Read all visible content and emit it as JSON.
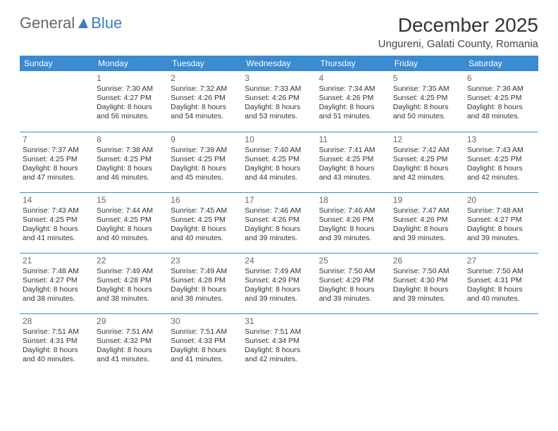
{
  "brand": {
    "part1": "General",
    "part2": "Blue"
  },
  "title": "December 2025",
  "location": "Ungureni, Galati County, Romania",
  "colors": {
    "header_bg": "#3a8bd0",
    "header_fg": "#ffffff",
    "border": "#3a8bd0",
    "brand_gray": "#666666",
    "brand_blue": "#3a7ec2"
  },
  "day_headers": [
    "Sunday",
    "Monday",
    "Tuesday",
    "Wednesday",
    "Thursday",
    "Friday",
    "Saturday"
  ],
  "weeks": [
    [
      null,
      {
        "n": "1",
        "sr": "7:30 AM",
        "ss": "4:27 PM",
        "dl1": "Daylight: 8 hours",
        "dl2": "and 56 minutes."
      },
      {
        "n": "2",
        "sr": "7:32 AM",
        "ss": "4:26 PM",
        "dl1": "Daylight: 8 hours",
        "dl2": "and 54 minutes."
      },
      {
        "n": "3",
        "sr": "7:33 AM",
        "ss": "4:26 PM",
        "dl1": "Daylight: 8 hours",
        "dl2": "and 53 minutes."
      },
      {
        "n": "4",
        "sr": "7:34 AM",
        "ss": "4:26 PM",
        "dl1": "Daylight: 8 hours",
        "dl2": "and 51 minutes."
      },
      {
        "n": "5",
        "sr": "7:35 AM",
        "ss": "4:25 PM",
        "dl1": "Daylight: 8 hours",
        "dl2": "and 50 minutes."
      },
      {
        "n": "6",
        "sr": "7:36 AM",
        "ss": "4:25 PM",
        "dl1": "Daylight: 8 hours",
        "dl2": "and 48 minutes."
      }
    ],
    [
      {
        "n": "7",
        "sr": "7:37 AM",
        "ss": "4:25 PM",
        "dl1": "Daylight: 8 hours",
        "dl2": "and 47 minutes."
      },
      {
        "n": "8",
        "sr": "7:38 AM",
        "ss": "4:25 PM",
        "dl1": "Daylight: 8 hours",
        "dl2": "and 46 minutes."
      },
      {
        "n": "9",
        "sr": "7:39 AM",
        "ss": "4:25 PM",
        "dl1": "Daylight: 8 hours",
        "dl2": "and 45 minutes."
      },
      {
        "n": "10",
        "sr": "7:40 AM",
        "ss": "4:25 PM",
        "dl1": "Daylight: 8 hours",
        "dl2": "and 44 minutes."
      },
      {
        "n": "11",
        "sr": "7:41 AM",
        "ss": "4:25 PM",
        "dl1": "Daylight: 8 hours",
        "dl2": "and 43 minutes."
      },
      {
        "n": "12",
        "sr": "7:42 AM",
        "ss": "4:25 PM",
        "dl1": "Daylight: 8 hours",
        "dl2": "and 42 minutes."
      },
      {
        "n": "13",
        "sr": "7:43 AM",
        "ss": "4:25 PM",
        "dl1": "Daylight: 8 hours",
        "dl2": "and 42 minutes."
      }
    ],
    [
      {
        "n": "14",
        "sr": "7:43 AM",
        "ss": "4:25 PM",
        "dl1": "Daylight: 8 hours",
        "dl2": "and 41 minutes."
      },
      {
        "n": "15",
        "sr": "7:44 AM",
        "ss": "4:25 PM",
        "dl1": "Daylight: 8 hours",
        "dl2": "and 40 minutes."
      },
      {
        "n": "16",
        "sr": "7:45 AM",
        "ss": "4:25 PM",
        "dl1": "Daylight: 8 hours",
        "dl2": "and 40 minutes."
      },
      {
        "n": "17",
        "sr": "7:46 AM",
        "ss": "4:26 PM",
        "dl1": "Daylight: 8 hours",
        "dl2": "and 39 minutes."
      },
      {
        "n": "18",
        "sr": "7:46 AM",
        "ss": "4:26 PM",
        "dl1": "Daylight: 8 hours",
        "dl2": "and 39 minutes."
      },
      {
        "n": "19",
        "sr": "7:47 AM",
        "ss": "4:26 PM",
        "dl1": "Daylight: 8 hours",
        "dl2": "and 39 minutes."
      },
      {
        "n": "20",
        "sr": "7:48 AM",
        "ss": "4:27 PM",
        "dl1": "Daylight: 8 hours",
        "dl2": "and 39 minutes."
      }
    ],
    [
      {
        "n": "21",
        "sr": "7:48 AM",
        "ss": "4:27 PM",
        "dl1": "Daylight: 8 hours",
        "dl2": "and 38 minutes."
      },
      {
        "n": "22",
        "sr": "7:49 AM",
        "ss": "4:28 PM",
        "dl1": "Daylight: 8 hours",
        "dl2": "and 38 minutes."
      },
      {
        "n": "23",
        "sr": "7:49 AM",
        "ss": "4:28 PM",
        "dl1": "Daylight: 8 hours",
        "dl2": "and 38 minutes."
      },
      {
        "n": "24",
        "sr": "7:49 AM",
        "ss": "4:29 PM",
        "dl1": "Daylight: 8 hours",
        "dl2": "and 39 minutes."
      },
      {
        "n": "25",
        "sr": "7:50 AM",
        "ss": "4:29 PM",
        "dl1": "Daylight: 8 hours",
        "dl2": "and 39 minutes."
      },
      {
        "n": "26",
        "sr": "7:50 AM",
        "ss": "4:30 PM",
        "dl1": "Daylight: 8 hours",
        "dl2": "and 39 minutes."
      },
      {
        "n": "27",
        "sr": "7:50 AM",
        "ss": "4:31 PM",
        "dl1": "Daylight: 8 hours",
        "dl2": "and 40 minutes."
      }
    ],
    [
      {
        "n": "28",
        "sr": "7:51 AM",
        "ss": "4:31 PM",
        "dl1": "Daylight: 8 hours",
        "dl2": "and 40 minutes."
      },
      {
        "n": "29",
        "sr": "7:51 AM",
        "ss": "4:32 PM",
        "dl1": "Daylight: 8 hours",
        "dl2": "and 41 minutes."
      },
      {
        "n": "30",
        "sr": "7:51 AM",
        "ss": "4:33 PM",
        "dl1": "Daylight: 8 hours",
        "dl2": "and 41 minutes."
      },
      {
        "n": "31",
        "sr": "7:51 AM",
        "ss": "4:34 PM",
        "dl1": "Daylight: 8 hours",
        "dl2": "and 42 minutes."
      },
      null,
      null,
      null
    ]
  ],
  "labels": {
    "sunrise": "Sunrise: ",
    "sunset": "Sunset: "
  }
}
